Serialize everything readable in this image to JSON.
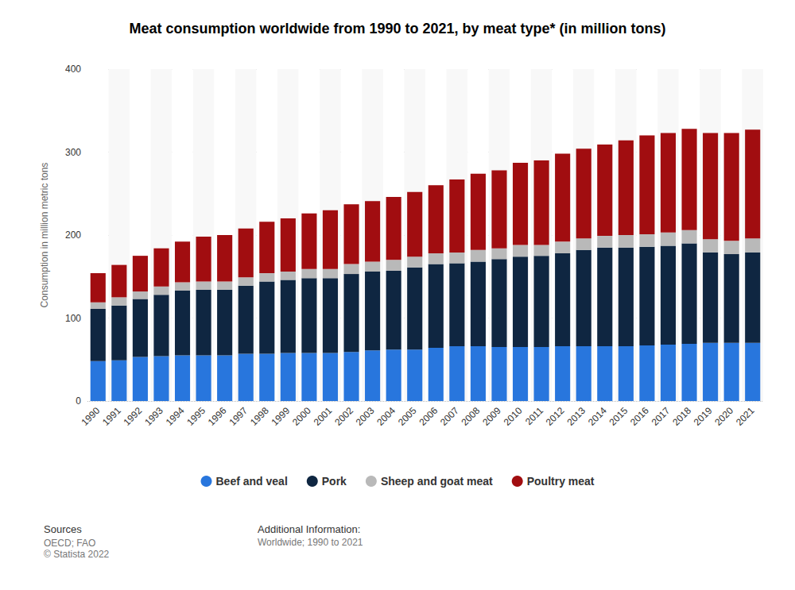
{
  "chart_data": {
    "type": "bar",
    "title": "Meat consumption worldwide from 1990 to 2021, by meat type* (in million tons)",
    "y_label": "Consumption in million metric tons",
    "categories": [
      "1990",
      "1991",
      "1992",
      "1993",
      "1994",
      "1995",
      "1996",
      "1997",
      "1998",
      "1999",
      "2000",
      "2001",
      "2002",
      "2003",
      "2004",
      "2005",
      "2006",
      "2007",
      "2008",
      "2009",
      "2010",
      "2011",
      "2012",
      "2013",
      "2014",
      "2015",
      "2016",
      "2017",
      "2018",
      "2019",
      "2020",
      "2021"
    ],
    "series": [
      {
        "name": "Beef and veal",
        "color": "#2876dd",
        "values": [
          48,
          49,
          53,
          54,
          55,
          55,
          55,
          57,
          57,
          58,
          58,
          58,
          59,
          61,
          62,
          62,
          64,
          66,
          66,
          65,
          65,
          65,
          66,
          66,
          66,
          66,
          67,
          68,
          69,
          70,
          70,
          70
        ]
      },
      {
        "name": "Pork",
        "color": "#0f2641",
        "values": [
          63,
          66,
          70,
          74,
          78,
          79,
          79,
          82,
          87,
          88,
          90,
          90,
          94,
          95,
          95,
          99,
          101,
          100,
          102,
          106,
          109,
          110,
          112,
          116,
          119,
          119,
          119,
          119,
          121,
          109,
          107,
          109
        ]
      },
      {
        "name": "Sheep and goat meat",
        "color": "#b9b9b9",
        "values": [
          8,
          10,
          9,
          10,
          10,
          10,
          10,
          10,
          10,
          10,
          11,
          11,
          12,
          12,
          13,
          13,
          13,
          13,
          14,
          13,
          14,
          13,
          14,
          14,
          14,
          15,
          15,
          16,
          16,
          16,
          16,
          17
        ]
      },
      {
        "name": "Poultry meat",
        "color": "#a10d10",
        "values": [
          35,
          39,
          43,
          46,
          49,
          54,
          56,
          59,
          62,
          64,
          67,
          71,
          72,
          73,
          76,
          78,
          82,
          88,
          92,
          94,
          99,
          102,
          106,
          108,
          110,
          114,
          119,
          120,
          122,
          128,
          130,
          131
        ]
      }
    ],
    "stacked": true,
    "ylim": [
      0,
      400
    ],
    "yticks": [
      0,
      100,
      200,
      300,
      400
    ],
    "grid": true,
    "legend": "bottom",
    "sources_title": "Sources",
    "sources": [
      "OECD; FAO",
      "© Statista 2022"
    ],
    "additional_info_title": "Additional Information:",
    "additional_info": "Worldwide; 1990 to 2021"
  }
}
